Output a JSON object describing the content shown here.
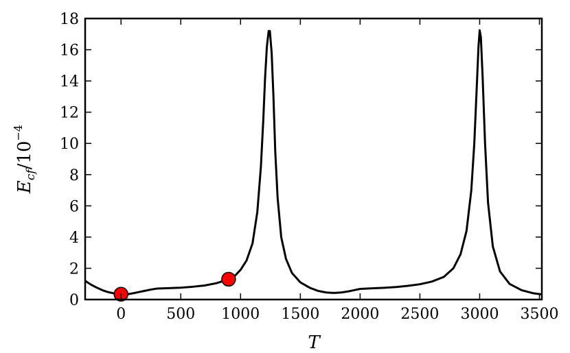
{
  "chart_data": {
    "type": "line",
    "xlabel": "T",
    "ylabel": {
      "main": "E",
      "subscript": "cf",
      "divider": "/10",
      "exponent": "−4"
    },
    "xlim": [
      -300,
      3520
    ],
    "ylim": [
      0,
      18
    ],
    "x_ticks": [
      0,
      500,
      1000,
      1500,
      2000,
      2500,
      3000,
      3500
    ],
    "x_tick_labels": [
      "0",
      "500",
      "1000",
      "1500",
      "2000",
      "2500",
      "3000",
      "3500"
    ],
    "y_ticks": [
      0,
      2,
      4,
      6,
      8,
      10,
      12,
      14,
      16,
      18
    ],
    "y_tick_labels": [
      "0",
      "2",
      "4",
      "6",
      "8",
      "10",
      "12",
      "14",
      "16",
      "18"
    ],
    "grid": false,
    "series": [
      {
        "color": "#000000",
        "points": [
          [
            -300,
            1.2
          ],
          [
            -250,
            0.95
          ],
          [
            -200,
            0.75
          ],
          [
            -150,
            0.58
          ],
          [
            -100,
            0.46
          ],
          [
            -50,
            0.38
          ],
          [
            0,
            0.34
          ],
          [
            50,
            0.33
          ],
          [
            100,
            0.4
          ],
          [
            150,
            0.48
          ],
          [
            200,
            0.56
          ],
          [
            250,
            0.64
          ],
          [
            300,
            0.7
          ],
          [
            400,
            0.73
          ],
          [
            500,
            0.76
          ],
          [
            600,
            0.82
          ],
          [
            700,
            0.9
          ],
          [
            800,
            1.05
          ],
          [
            900,
            1.3
          ],
          [
            950,
            1.5
          ],
          [
            1000,
            1.9
          ],
          [
            1050,
            2.5
          ],
          [
            1100,
            3.6
          ],
          [
            1140,
            5.6
          ],
          [
            1170,
            8.5
          ],
          [
            1190,
            11.5
          ],
          [
            1205,
            14.2
          ],
          [
            1220,
            16.2
          ],
          [
            1235,
            17.2
          ],
          [
            1245,
            17.2
          ],
          [
            1260,
            15.8
          ],
          [
            1275,
            13.0
          ],
          [
            1290,
            9.5
          ],
          [
            1310,
            6.5
          ],
          [
            1340,
            4.0
          ],
          [
            1380,
            2.6
          ],
          [
            1430,
            1.7
          ],
          [
            1500,
            1.1
          ],
          [
            1580,
            0.75
          ],
          [
            1650,
            0.55
          ],
          [
            1720,
            0.45
          ],
          [
            1780,
            0.42
          ],
          [
            1840,
            0.45
          ],
          [
            1900,
            0.52
          ],
          [
            1950,
            0.6
          ],
          [
            2000,
            0.68
          ],
          [
            2100,
            0.72
          ],
          [
            2200,
            0.75
          ],
          [
            2300,
            0.8
          ],
          [
            2400,
            0.88
          ],
          [
            2500,
            0.98
          ],
          [
            2600,
            1.15
          ],
          [
            2700,
            1.45
          ],
          [
            2780,
            2.0
          ],
          [
            2840,
            2.9
          ],
          [
            2890,
            4.4
          ],
          [
            2930,
            7.0
          ],
          [
            2955,
            10.0
          ],
          [
            2975,
            13.5
          ],
          [
            2990,
            16.2
          ],
          [
            3000,
            17.25
          ],
          [
            3010,
            16.8
          ],
          [
            3025,
            14.2
          ],
          [
            3045,
            10.0
          ],
          [
            3070,
            6.2
          ],
          [
            3110,
            3.4
          ],
          [
            3170,
            1.8
          ],
          [
            3250,
            1.0
          ],
          [
            3350,
            0.6
          ],
          [
            3450,
            0.4
          ],
          [
            3520,
            0.33
          ]
        ]
      }
    ],
    "markers": [
      {
        "x": 0,
        "y": 0.34,
        "color": "#ff0000"
      },
      {
        "x": 900,
        "y": 1.3,
        "color": "#ff0000"
      }
    ]
  }
}
